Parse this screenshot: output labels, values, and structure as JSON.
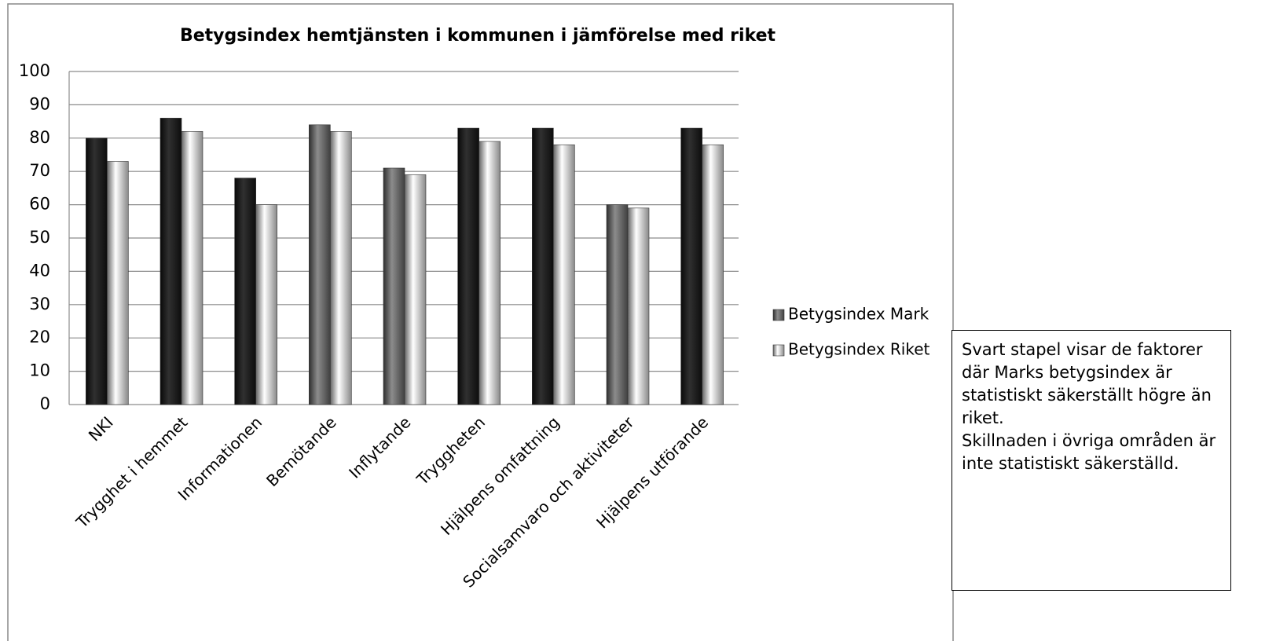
{
  "chart_data": {
    "type": "bar",
    "title": "Betygsindex hemtjänsten i kommunen i jämförelse med riket",
    "categories": [
      "NKI",
      "Trygghet i hemmet",
      "Informationen",
      "Bemötande",
      "Inflytande",
      "Tryggheten",
      "Hjälpens omfattning",
      "Socialsamvaro och aktiviteter",
      "Hjälpens utförande"
    ],
    "series": [
      {
        "name": "Betygsindex Mark",
        "color": "#555555",
        "point_colors": [
          "#111111",
          "#111111",
          "#111111",
          "#555555",
          "#555555",
          "#111111",
          "#111111",
          "#555555",
          "#111111"
        ],
        "values": [
          80,
          86,
          68,
          84,
          71,
          83,
          83,
          60,
          83
        ]
      },
      {
        "name": "Betygsindex Riket",
        "color": "#b5b5b5",
        "values": [
          73,
          82,
          60,
          82,
          69,
          79,
          78,
          59,
          78
        ]
      }
    ],
    "ylim": [
      0,
      100
    ],
    "yticks": [
      0,
      10,
      20,
      30,
      40,
      50,
      60,
      70,
      80,
      90,
      100
    ],
    "grid": true,
    "legend": "right",
    "annotations": [
      "Svart stapel visar de faktorer där Marks betygsindex är statistiskt säkerställt högre än riket.",
      "Skillnaden i övriga områden är inte statistiskt säkerställd."
    ]
  }
}
